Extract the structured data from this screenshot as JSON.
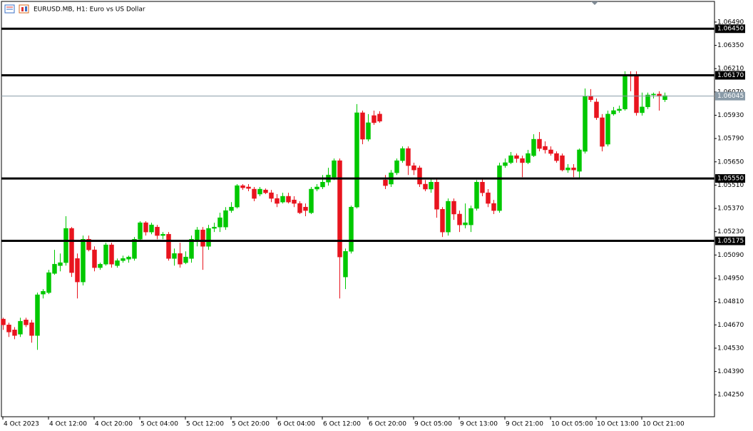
{
  "chart_data": {
    "type": "candlestick",
    "title": "EURUSD.MB, H1:  Euro vs US Dollar",
    "categories": [
      "4 Oct 2023",
      null,
      null,
      null,
      null,
      null,
      null,
      null,
      "4 Oct 12:00",
      null,
      null,
      null,
      null,
      null,
      null,
      null,
      "4 Oct 20:00",
      null,
      null,
      null,
      null,
      null,
      null,
      null,
      "5 Oct 04:00",
      null,
      null,
      null,
      null,
      null,
      null,
      null,
      "5 Oct 12:00",
      null,
      null,
      null,
      null,
      null,
      null,
      null,
      "5 Oct 20:00",
      null,
      null,
      null,
      null,
      null,
      null,
      null,
      "6 Oct 04:00",
      null,
      null,
      null,
      null,
      null,
      null,
      null,
      "6 Oct 12:00",
      null,
      null,
      null,
      null,
      null,
      null,
      null,
      "6 Oct 20:00",
      null,
      null,
      null,
      null,
      null,
      null,
      null,
      "9 Oct 05:00",
      null,
      null,
      null,
      null,
      null,
      null,
      null,
      "9 Oct 13:00",
      null,
      null,
      null,
      null,
      null,
      null,
      null,
      "9 Oct 21:00",
      null,
      null,
      null,
      null,
      null,
      null,
      null,
      "10 Oct 05:00",
      null,
      null,
      null,
      null,
      null,
      null,
      null,
      "10 Oct 13:00",
      null,
      null,
      null,
      null,
      null,
      null,
      null,
      "10 Oct 21:00",
      null,
      null,
      null,
      null
    ],
    "ohlc": [
      [
        1.04705,
        1.04713,
        1.0464,
        1.0467
      ],
      [
        1.0467,
        1.04683,
        1.04597,
        1.04627
      ],
      [
        1.0464,
        1.04657,
        1.04584,
        1.04606
      ],
      [
        1.04614,
        1.04713,
        1.04597,
        1.04692
      ],
      [
        1.047,
        1.04713,
        1.04657,
        1.0467
      ],
      [
        1.04683,
        1.047,
        1.04563,
        1.04606
      ],
      [
        1.04606,
        1.04864,
        1.0452,
        1.04851
      ],
      [
        1.04855,
        1.04885,
        1.04829,
        1.04872
      ],
      [
        1.04864,
        1.05001,
        1.04855,
        1.04984
      ],
      [
        1.04979,
        1.05121,
        1.04971,
        1.05035
      ],
      [
        1.05026,
        1.05099,
        1.04992,
        1.05044
      ],
      [
        1.05044,
        1.05323,
        1.05026,
        1.0525
      ],
      [
        1.0525,
        1.05258,
        1.04958,
        1.04984
      ],
      [
        1.05069,
        1.05099,
        1.04829,
        1.04928
      ],
      [
        1.04928,
        1.05207,
        1.04907,
        1.05185
      ],
      [
        1.05185,
        1.05207,
        1.05112,
        1.05121
      ],
      [
        1.05121,
        1.05142,
        1.04992,
        1.05014
      ],
      [
        1.05014,
        1.05044,
        1.05001,
        1.05035
      ],
      [
        1.05035,
        1.05164,
        1.05026,
        1.05151
      ],
      [
        1.05151,
        1.05164,
        1.05014,
        1.05035
      ],
      [
        1.05026,
        1.05069,
        1.05014,
        1.05056
      ],
      [
        1.05056,
        1.05086,
        1.05044,
        1.05069
      ],
      [
        1.05065,
        1.05086,
        1.05044,
        1.05078
      ],
      [
        1.05069,
        1.05198,
        1.05056,
        1.05185
      ],
      [
        1.05185,
        1.05293,
        1.05172,
        1.05284
      ],
      [
        1.05284,
        1.05293,
        1.05207,
        1.05228
      ],
      [
        1.05228,
        1.05284,
        1.05215,
        1.05271
      ],
      [
        1.05258,
        1.05271,
        1.05185,
        1.05207
      ],
      [
        1.05207,
        1.05228,
        1.05185,
        1.05215
      ],
      [
        1.05215,
        1.05228,
        1.05056,
        1.05069
      ],
      [
        1.05069,
        1.05129,
        1.05026,
        1.05099
      ],
      [
        1.05099,
        1.05164,
        1.05014,
        1.05035
      ],
      [
        1.05044,
        1.05112,
        1.05035,
        1.05078
      ],
      [
        1.05069,
        1.05207,
        1.05044,
        1.05185
      ],
      [
        1.05172,
        1.05258,
        1.05142,
        1.05241
      ],
      [
        1.05241,
        1.05258,
        1.05001,
        1.05142
      ],
      [
        1.05142,
        1.05271,
        1.05121,
        1.0525
      ],
      [
        1.0525,
        1.05284,
        1.05228,
        1.05258
      ],
      [
        1.05258,
        1.05344,
        1.05228,
        1.05314
      ],
      [
        1.05258,
        1.05378,
        1.05241,
        1.05357
      ],
      [
        1.05357,
        1.05408,
        1.05344,
        1.05378
      ],
      [
        1.05378,
        1.05516,
        1.0537,
        1.05507
      ],
      [
        1.05507,
        1.05516,
        1.05481,
        1.05494
      ],
      [
        1.05499,
        1.05516,
        1.05473,
        1.0549
      ],
      [
        1.05486,
        1.05499,
        1.05413,
        1.0543
      ],
      [
        1.05456,
        1.05499,
        1.05443,
        1.05486
      ],
      [
        1.05481,
        1.0549,
        1.05456,
        1.05464
      ],
      [
        1.05464,
        1.05481,
        1.05408,
        1.0543
      ],
      [
        1.0543,
        1.05456,
        1.05378,
        1.054
      ],
      [
        1.05408,
        1.05464,
        1.054,
        1.05443
      ],
      [
        1.05443,
        1.05464,
        1.054,
        1.05408
      ],
      [
        1.05421,
        1.05443,
        1.05378,
        1.054
      ],
      [
        1.054,
        1.05413,
        1.05336,
        1.05344
      ],
      [
        1.05378,
        1.054,
        1.05323,
        1.05357
      ],
      [
        1.05344,
        1.05499,
        1.05336,
        1.05486
      ],
      [
        1.05486,
        1.05516,
        1.05473,
        1.05499
      ],
      [
        1.05499,
        1.05571,
        1.05486,
        1.05528
      ],
      [
        1.05528,
        1.05614,
        1.05507,
        1.05571
      ],
      [
        1.05558,
        1.0567,
        1.05541,
        1.05657
      ],
      [
        1.05657,
        1.0567,
        1.04829,
        1.05078
      ],
      [
        1.04958,
        1.05129,
        1.04885,
        1.05112
      ],
      [
        1.05112,
        1.05387,
        1.05099,
        1.05378
      ],
      [
        1.05378,
        1.05997,
        1.0537,
        1.05945
      ],
      [
        1.05945,
        1.05958,
        1.05756,
        1.05786
      ],
      [
        1.05786,
        1.05937,
        1.05773,
        1.05885
      ],
      [
        1.05928,
        1.05958,
        1.05872,
        1.05885
      ],
      [
        1.05937,
        1.05954,
        1.05885,
        1.05894
      ],
      [
        1.05541,
        1.05571,
        1.05486,
        1.05507
      ],
      [
        1.05516,
        1.05601,
        1.05499,
        1.05584
      ],
      [
        1.05584,
        1.0567,
        1.05571,
        1.05657
      ],
      [
        1.05657,
        1.05743,
        1.05645,
        1.0573
      ],
      [
        1.0573,
        1.05743,
        1.05571,
        1.05627
      ],
      [
        1.05627,
        1.05645,
        1.05571,
        1.05601
      ],
      [
        1.05614,
        1.05627,
        1.05499,
        1.05516
      ],
      [
        1.05516,
        1.05541,
        1.05473,
        1.05486
      ],
      [
        1.05486,
        1.0555,
        1.05464,
        1.05528
      ],
      [
        1.05528,
        1.0555,
        1.05314,
        1.05365
      ],
      [
        1.05365,
        1.05378,
        1.05198,
        1.05228
      ],
      [
        1.05228,
        1.0543,
        1.05207,
        1.05413
      ],
      [
        1.05413,
        1.0543,
        1.05301,
        1.05336
      ],
      [
        1.05336,
        1.05357,
        1.05228,
        1.05271
      ],
      [
        1.05271,
        1.054,
        1.0525,
        1.05284
      ],
      [
        1.05271,
        1.05387,
        1.05228,
        1.0537
      ],
      [
        1.0537,
        1.05541,
        1.05357,
        1.05528
      ],
      [
        1.05528,
        1.0555,
        1.05443,
        1.05464
      ],
      [
        1.05464,
        1.05486,
        1.05378,
        1.054
      ],
      [
        1.054,
        1.05421,
        1.05336,
        1.05357
      ],
      [
        1.05357,
        1.05645,
        1.05344,
        1.05627
      ],
      [
        1.05627,
        1.0567,
        1.05614,
        1.05645
      ],
      [
        1.05645,
        1.05709,
        1.05636,
        1.05687
      ],
      [
        1.05687,
        1.057,
        1.05645,
        1.0567
      ],
      [
        1.0567,
        1.05687,
        1.05558,
        1.05645
      ],
      [
        1.05645,
        1.05722,
        1.05636,
        1.057
      ],
      [
        1.05687,
        1.05816,
        1.05679,
        1.05786
      ],
      [
        1.05786,
        1.05829,
        1.05713,
        1.0573
      ],
      [
        1.05743,
        1.05773,
        1.057,
        1.05722
      ],
      [
        1.05722,
        1.05743,
        1.05687,
        1.057
      ],
      [
        1.057,
        1.05713,
        1.05645,
        1.05657
      ],
      [
        1.05687,
        1.057,
        1.05593,
        1.05601
      ],
      [
        1.05601,
        1.05636,
        1.05584,
        1.05614
      ],
      [
        1.05614,
        1.05636,
        1.05558,
        1.05601
      ],
      [
        1.05593,
        1.0573,
        1.0555,
        1.05722
      ],
      [
        1.05713,
        1.06091,
        1.057,
        1.06044
      ],
      [
        1.06044,
        1.06087,
        1.0601,
        1.06023
      ],
      [
        1.0601,
        1.06031,
        1.05902,
        1.05915
      ],
      [
        1.05915,
        1.05937,
        1.05713,
        1.05743
      ],
      [
        1.05756,
        1.05958,
        1.05743,
        1.05937
      ],
      [
        1.05937,
        1.0598,
        1.05928,
        1.05958
      ],
      [
        1.05958,
        1.05988,
        1.05945,
        1.05967
      ],
      [
        1.05967,
        1.06194,
        1.05958,
        1.06173
      ],
      [
        1.06173,
        1.06194,
        1.06074,
        1.06164
      ],
      [
        1.06173,
        1.06194,
        1.05928,
        1.05945
      ],
      [
        1.05945,
        1.06066,
        1.05928,
        1.0598
      ],
      [
        1.0598,
        1.06066,
        1.05967,
        1.06052
      ],
      [
        1.06052,
        1.06066,
        1.06031,
        1.06057
      ],
      [
        1.06057,
        1.06074,
        1.05958,
        1.06044
      ],
      [
        1.06023,
        1.06066,
        1.0601,
        1.06048
      ]
    ],
    "up_color": "#00c800",
    "down_color": "#e8141e",
    "ylim": [
      1.04118,
      1.06614
    ],
    "yticks": [
      {
        "value": 1.0649,
        "label": "1.06490"
      },
      {
        "value": 1.0635,
        "label": "1.06350"
      },
      {
        "value": 1.0621,
        "label": "1.06210"
      },
      {
        "value": 1.0607,
        "label": "1.06070"
      },
      {
        "value": 1.0593,
        "label": "1.05930"
      },
      {
        "value": 1.0579,
        "label": "1.05790"
      },
      {
        "value": 1.0565,
        "label": "1.05650"
      },
      {
        "value": 1.0551,
        "label": "1.05510"
      },
      {
        "value": 1.0537,
        "label": "1.05370"
      },
      {
        "value": 1.0523,
        "label": "1.05230"
      },
      {
        "value": 1.0509,
        "label": "1.05090"
      },
      {
        "value": 1.0495,
        "label": "1.04950"
      },
      {
        "value": 1.0481,
        "label": "1.04810"
      },
      {
        "value": 1.0467,
        "label": "1.04670"
      },
      {
        "value": 1.0453,
        "label": "1.04530"
      },
      {
        "value": 1.0439,
        "label": "1.04390"
      },
      {
        "value": 1.0425,
        "label": "1.04250"
      }
    ],
    "levels": [
      {
        "value": 1.0645,
        "label": "1.06450"
      },
      {
        "value": 1.0617,
        "label": "1.06170"
      },
      {
        "value": 1.0555,
        "label": "1.05550"
      },
      {
        "value": 1.05175,
        "label": "1.05175"
      }
    ],
    "level_color": "#000000",
    "current_price": {
      "value": 1.06045,
      "label": "1.06045"
    },
    "current_price_color": "#8a9ba8"
  }
}
